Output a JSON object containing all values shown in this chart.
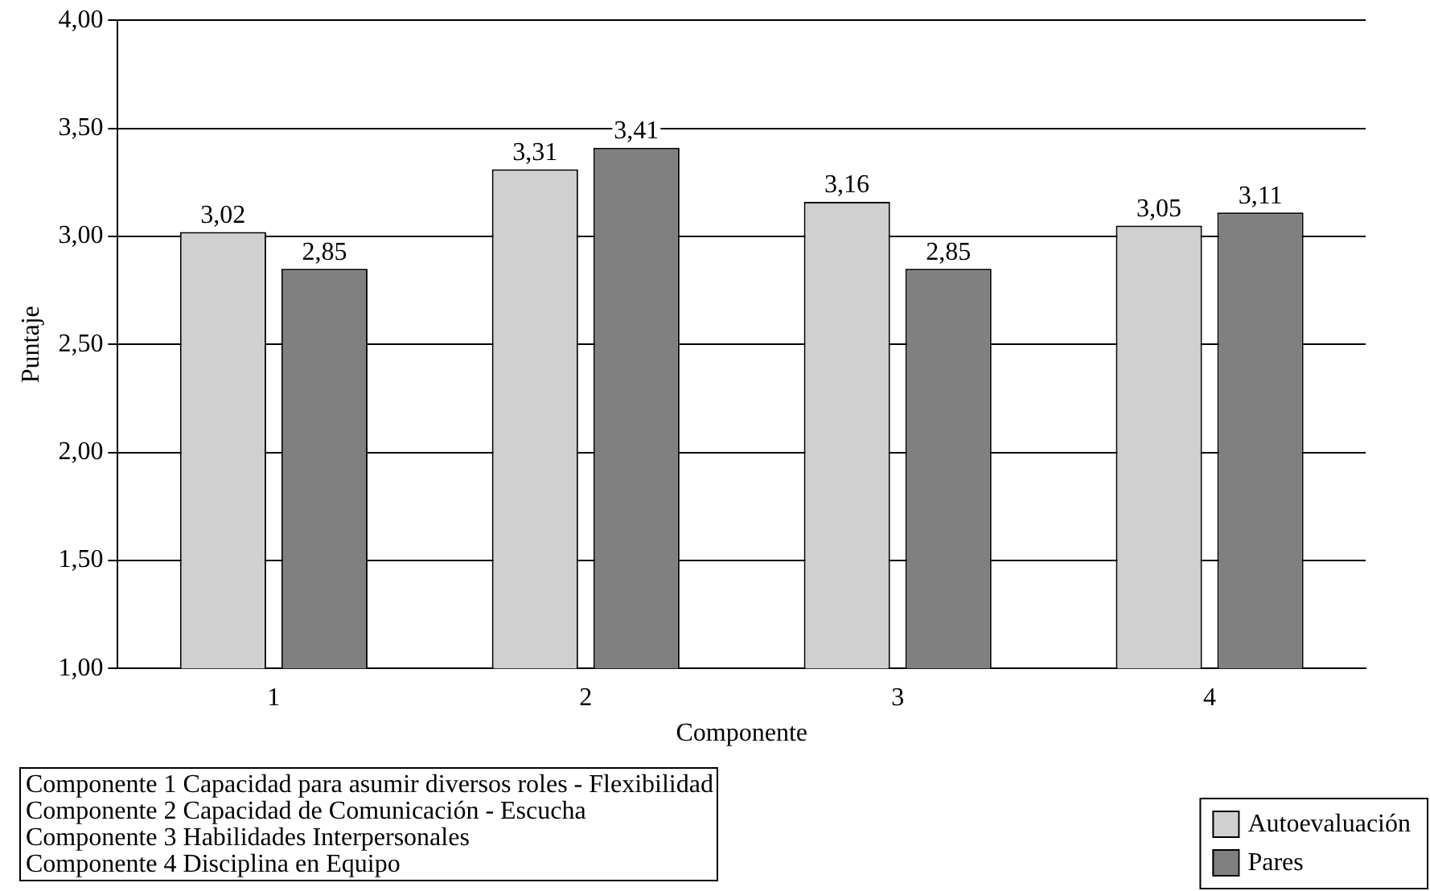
{
  "chart_data": {
    "type": "bar",
    "xlabel": "Componente",
    "ylabel": "Puntaje",
    "categories": [
      "1",
      "2",
      "3",
      "4"
    ],
    "series": [
      {
        "name": "Autoevaluación",
        "color": "#d0d0d0",
        "values": [
          3.02,
          3.31,
          3.16,
          3.05
        ],
        "value_labels": [
          "3,02",
          "3,31",
          "3,16",
          "3,05"
        ]
      },
      {
        "name": "Pares",
        "color": "#808080",
        "values": [
          2.85,
          3.41,
          2.85,
          3.11
        ],
        "value_labels": [
          "2,85",
          "3,41",
          "2,85",
          "3,11"
        ]
      }
    ],
    "ylim": [
      1,
      4
    ],
    "yticks": [
      {
        "value": 1,
        "label": "1,00"
      },
      {
        "value": 1.5,
        "label": "1,50"
      },
      {
        "value": 2,
        "label": "2,00"
      },
      {
        "value": 2.5,
        "label": "2,50"
      },
      {
        "value": 3,
        "label": "3,00"
      },
      {
        "value": 3.5,
        "label": "3,50"
      },
      {
        "value": 4,
        "label": "4,00"
      }
    ],
    "grid": "y",
    "legend": "bottom right",
    "annotations": [
      "Componente 1 Capacidad para asumir diversos roles - Flexibilidad",
      "Componente 2 Capacidad de Comunicación - Escucha",
      "Componente 3 Habilidades Interpersonales",
      "Componente 4 Disciplina en Equipo"
    ]
  }
}
